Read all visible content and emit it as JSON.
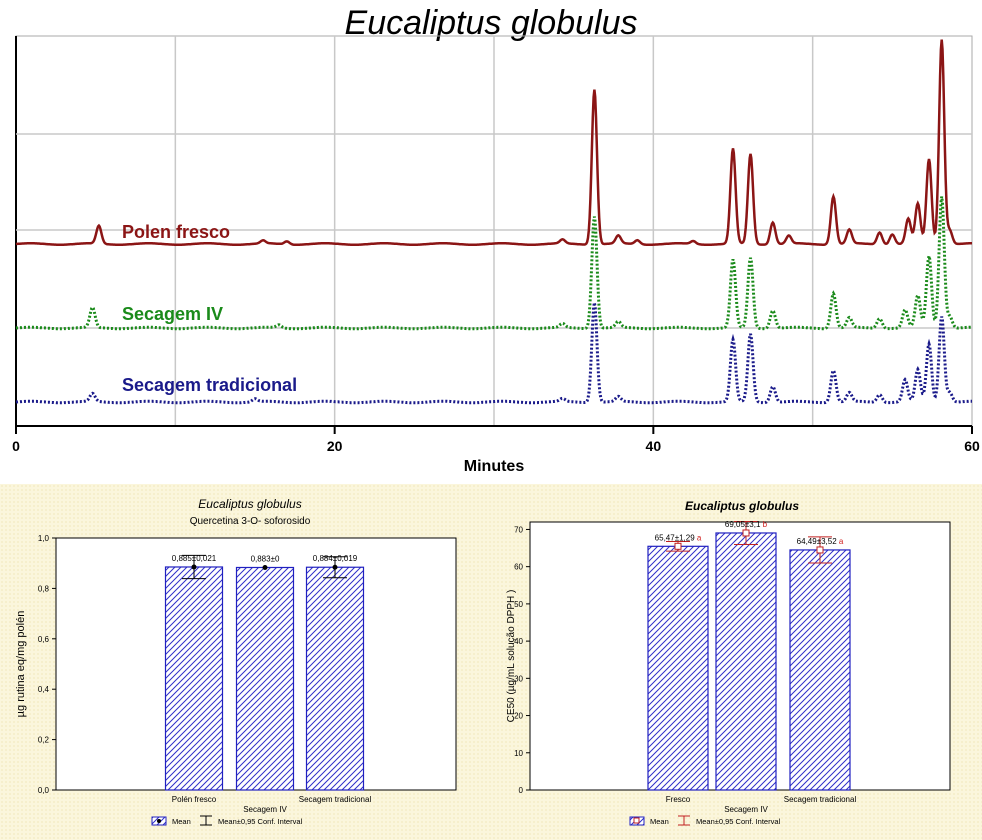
{
  "main_title": "Eucaliptus globulus",
  "chart_data": [
    {
      "type": "line",
      "title": "Eucaliptus globulus",
      "xlabel": "Minutes",
      "ylabel": "",
      "xlim": [
        0,
        60
      ],
      "xticks": [
        0,
        20,
        40,
        60
      ],
      "grid": true,
      "legend": "inline labels left",
      "series": [
        {
          "name": "Polen fresco",
          "color": "#8b1515",
          "style": "solid",
          "peaks": [
            [
              5.2,
              18
            ],
            [
              15.5,
              3
            ],
            [
              17,
              3
            ],
            [
              34.3,
              4
            ],
            [
              36.3,
              155
            ],
            [
              37.8,
              8
            ],
            [
              39,
              4
            ],
            [
              42.5,
              3
            ],
            [
              45,
              95
            ],
            [
              46.1,
              90
            ],
            [
              47.5,
              22
            ],
            [
              48.5,
              8
            ],
            [
              51.3,
              48
            ],
            [
              52.3,
              14
            ],
            [
              54.2,
              12
            ],
            [
              55,
              10
            ],
            [
              56,
              25
            ],
            [
              56.6,
              40
            ],
            [
              57.3,
              85
            ],
            [
              58.1,
              205
            ],
            [
              58.6,
              14
            ]
          ]
        },
        {
          "name": "Secagem IV",
          "color": "#1a8a1a",
          "style": "dotted",
          "peaks": [
            [
              4.8,
              20
            ],
            [
              16.5,
              3
            ],
            [
              34.3,
              4
            ],
            [
              36.3,
              112
            ],
            [
              37.8,
              6
            ],
            [
              45,
              68
            ],
            [
              46.1,
              70
            ],
            [
              47.5,
              18
            ],
            [
              51.3,
              35
            ],
            [
              52.3,
              10
            ],
            [
              54.2,
              10
            ],
            [
              55.8,
              18
            ],
            [
              56.6,
              32
            ],
            [
              57.3,
              72
            ],
            [
              58.1,
              132
            ],
            [
              58.6,
              12
            ]
          ]
        },
        {
          "name": "Secagem tradicional",
          "color": "#1a1a8a",
          "style": "dotted",
          "peaks": [
            [
              4.8,
              8
            ],
            [
              15,
              3
            ],
            [
              34.3,
              3
            ],
            [
              36.3,
              100
            ],
            [
              37.8,
              5
            ],
            [
              45,
              62
            ],
            [
              46.1,
              68
            ],
            [
              47.5,
              16
            ],
            [
              51.3,
              32
            ],
            [
              52.3,
              9
            ],
            [
              54.2,
              8
            ],
            [
              55.8,
              22
            ],
            [
              56.6,
              32
            ],
            [
              57.3,
              58
            ],
            [
              58.1,
              86
            ],
            [
              58.6,
              10
            ]
          ]
        }
      ]
    },
    {
      "type": "bar",
      "title": "Eucaliptus globulus",
      "subtitle": "Quercetina 3-O- soforosido",
      "xlabel": "Secagem IV",
      "ylabel": "µg rutina eq/mg polén",
      "ylim": [
        0,
        1.0
      ],
      "yticks": [
        "0,0",
        "0,2",
        "0,4",
        "0,6",
        "0,8",
        "1,0"
      ],
      "categories": [
        "Polén fresco",
        "Secagem IV",
        "Secagem tradicional"
      ],
      "category_labels": [
        "Polén fresco",
        "",
        "Secagem tradicional"
      ],
      "values": [
        0.885,
        0.883,
        0.884
      ],
      "errors": [
        0.021,
        0,
        0.019
      ],
      "value_labels": [
        "0,885±0,021",
        "0,883±0",
        "0,884±0,019"
      ],
      "legend": {
        "mean": "Mean",
        "interval": "Mean±0,95 Conf. Interval"
      }
    },
    {
      "type": "bar",
      "title": "Eucaliptus globulus",
      "xlabel": "Secagem IV",
      "ylabel": "CE50 (µg/mL solução DPPH )",
      "ylim": [
        0,
        72
      ],
      "yticks": [
        "0",
        "10",
        "20",
        "30",
        "40",
        "50",
        "60",
        "70"
      ],
      "categories": [
        "Fresco",
        "Secagem IV",
        "Secagem tradicional"
      ],
      "category_labels": [
        "Fresco",
        "",
        "Secagem tradicional"
      ],
      "values": [
        65.47,
        69.05,
        64.49
      ],
      "errors": [
        1.29,
        3.1,
        3.52
      ],
      "value_labels": [
        "65,47±1,29",
        "69,05±3,1",
        "64,49±3,52"
      ],
      "letters": [
        "a",
        "b",
        "a"
      ],
      "legend": {
        "mean": "Mean",
        "interval": "Mean±0,95 Conf. Interval"
      }
    }
  ]
}
